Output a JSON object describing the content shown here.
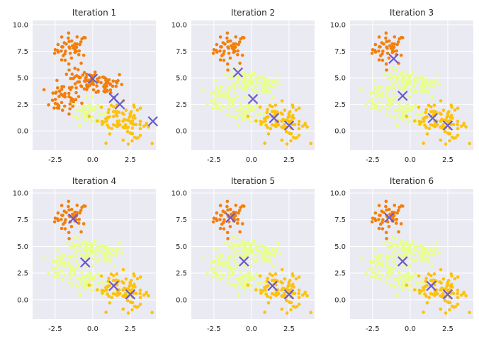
{
  "colors": {
    "background": "#ffffff",
    "axes_face": "#eaeaf2",
    "grid": "#ffffff",
    "text": "#262626",
    "cluster_orange": "#f27f0c",
    "cluster_yellow": "#fcc20e",
    "cluster_pale": "#e8ff8a",
    "centroid": "#6a5acd"
  },
  "chart_data": [
    {
      "type": "scatter",
      "title": "Iteration 1",
      "xlim": [
        -4.0,
        4.2
      ],
      "ylim": [
        -1.8,
        10.4
      ],
      "xticks": [
        "-2.5",
        "0.0",
        "2.5"
      ],
      "yticks": [
        "0.0",
        "2.5",
        "5.0",
        "7.5",
        "10.0"
      ],
      "grid": true,
      "assign": [
        "orange",
        "orange",
        "orange",
        "orange",
        "pale",
        "yellow",
        "yellow"
      ],
      "centroids": [
        {
          "x": 0.0,
          "y": 4.9
        },
        {
          "x": 1.4,
          "y": 3.1
        },
        {
          "x": 1.8,
          "y": 2.5
        },
        {
          "x": 4.0,
          "y": 0.9
        }
      ]
    },
    {
      "type": "scatter",
      "title": "Iteration 2",
      "xlim": [
        -4.0,
        4.2
      ],
      "ylim": [
        -1.8,
        10.4
      ],
      "xticks": [
        "-2.5",
        "0.0",
        "2.5"
      ],
      "yticks": [
        "0.0",
        "2.5",
        "5.0",
        "7.5",
        "10.0"
      ],
      "grid": true,
      "assign": [
        "orange",
        "pale",
        "pale",
        "pale",
        "pale",
        "yellow",
        "yellow"
      ],
      "centroids": [
        {
          "x": -0.9,
          "y": 5.5
        },
        {
          "x": 0.1,
          "y": 3.0
        },
        {
          "x": 1.5,
          "y": 1.2
        },
        {
          "x": 2.5,
          "y": 0.5
        }
      ]
    },
    {
      "type": "scatter",
      "title": "Iteration 3",
      "xlim": [
        -4.0,
        4.2
      ],
      "ylim": [
        -1.8,
        10.4
      ],
      "xticks": [
        "-2.5",
        "0.0",
        "2.5"
      ],
      "yticks": [
        "0.0",
        "2.5",
        "5.0",
        "7.5",
        "10.0"
      ],
      "grid": true,
      "assign": [
        "orange",
        "pale",
        "pale",
        "pale",
        "pale",
        "yellow",
        "yellow"
      ],
      "centroids": [
        {
          "x": -1.1,
          "y": 6.8
        },
        {
          "x": -0.5,
          "y": 3.3
        },
        {
          "x": 1.5,
          "y": 1.2
        },
        {
          "x": 2.5,
          "y": 0.5
        }
      ]
    },
    {
      "type": "scatter",
      "title": "Iteration 4",
      "xlim": [
        -4.0,
        4.2
      ],
      "ylim": [
        -1.8,
        10.4
      ],
      "xticks": [
        "-2.5",
        "0.0",
        "2.5"
      ],
      "yticks": [
        "0.0",
        "2.5",
        "5.0",
        "7.5",
        "10.0"
      ],
      "grid": true,
      "assign": [
        "orange",
        "pale",
        "pale",
        "pale",
        "pale",
        "yellow",
        "yellow"
      ],
      "centroids": [
        {
          "x": -1.3,
          "y": 7.6
        },
        {
          "x": -0.5,
          "y": 3.5
        },
        {
          "x": 1.4,
          "y": 1.3
        },
        {
          "x": 2.5,
          "y": 0.5
        }
      ]
    },
    {
      "type": "scatter",
      "title": "Iteration 5",
      "xlim": [
        -4.0,
        4.2
      ],
      "ylim": [
        -1.8,
        10.4
      ],
      "xticks": [
        "-2.5",
        "0.0",
        "2.5"
      ],
      "yticks": [
        "0.0",
        "2.5",
        "5.0",
        "7.5",
        "10.0"
      ],
      "grid": true,
      "assign": [
        "orange",
        "pale",
        "pale",
        "pale",
        "pale",
        "yellow",
        "yellow"
      ],
      "centroids": [
        {
          "x": -1.4,
          "y": 7.7
        },
        {
          "x": -0.5,
          "y": 3.6
        },
        {
          "x": 1.4,
          "y": 1.3
        },
        {
          "x": 2.5,
          "y": 0.5
        }
      ]
    },
    {
      "type": "scatter",
      "title": "Iteration 6",
      "xlim": [
        -4.0,
        4.2
      ],
      "ylim": [
        -1.8,
        10.4
      ],
      "xticks": [
        "-2.5",
        "0.0",
        "2.5"
      ],
      "yticks": [
        "0.0",
        "2.5",
        "5.0",
        "7.5",
        "10.0"
      ],
      "grid": true,
      "assign": [
        "orange",
        "pale",
        "pale",
        "pale",
        "pale",
        "yellow",
        "yellow"
      ],
      "centroids": [
        {
          "x": -1.4,
          "y": 7.7
        },
        {
          "x": -0.5,
          "y": 3.6
        },
        {
          "x": 1.4,
          "y": 1.3
        },
        {
          "x": 2.5,
          "y": 0.5
        }
      ]
    }
  ],
  "points_per_cluster": 45,
  "clusters": [
    {
      "cx": -1.4,
      "cy": 7.7,
      "sx": 0.55,
      "sy": 0.75
    },
    {
      "cx": -2.0,
      "cy": 3.0,
      "sx": 0.6,
      "sy": 0.7
    },
    {
      "cx": -0.6,
      "cy": 4.8,
      "sx": 0.5,
      "sy": 0.5
    },
    {
      "cx": 0.9,
      "cy": 4.4,
      "sx": 0.6,
      "sy": 0.6
    },
    {
      "cx": -0.4,
      "cy": 1.8,
      "sx": 0.45,
      "sy": 0.6
    },
    {
      "cx": 1.5,
      "cy": 1.2,
      "sx": 0.6,
      "sy": 0.7
    },
    {
      "cx": 2.6,
      "cy": 0.6,
      "sx": 0.6,
      "sy": 0.7
    }
  ]
}
